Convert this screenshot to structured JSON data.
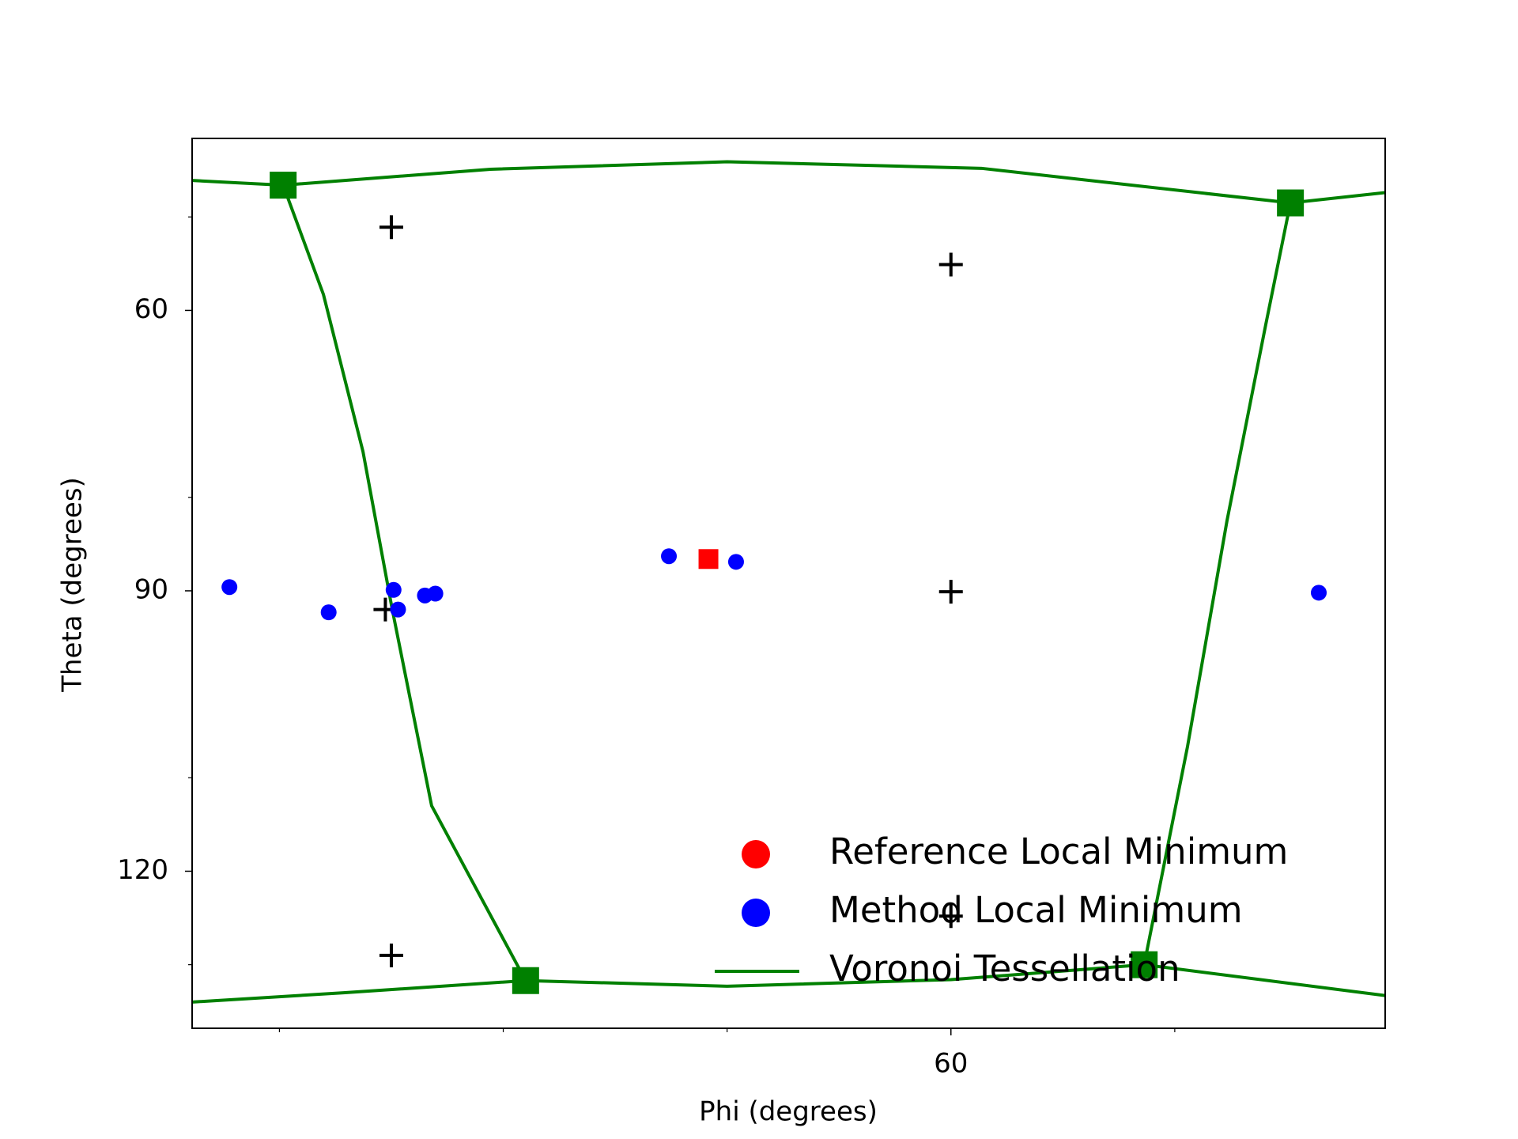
{
  "chart_data": {
    "type": "scatter",
    "xlabel": "Phi (degrees)",
    "ylabel": "Theta (degrees)",
    "xlim": [
      -41.7,
      118.2
    ],
    "ylim": [
      41.6,
      136.8
    ],
    "y_inverted": true,
    "xticks": [
      60
    ],
    "x_minor_ticks": [
      -30,
      0,
      30,
      90
    ],
    "yticks": [
      60,
      90,
      120
    ],
    "y_minor_ticks": [
      50,
      80,
      110,
      130
    ],
    "legend": "lower right",
    "series": [
      {
        "name": "Reference Local Minimum",
        "color": "#ff0000",
        "marker": "square",
        "x": [
          27.5
        ],
        "y": [
          86.6
        ]
      },
      {
        "name": "Method Local Minimum",
        "color": "#0000ff",
        "marker": "circle",
        "x": [
          -36.7,
          -23.4,
          -14.7,
          -14.1,
          -10.5,
          -9.1,
          22.2,
          31.2,
          109.3
        ],
        "y": [
          89.6,
          92.3,
          89.9,
          92.0,
          90.5,
          90.3,
          86.3,
          86.9,
          90.2
        ]
      },
      {
        "name": "Voronoi Tessellation",
        "color": "#008000",
        "marker": "line",
        "x": [
          -41.7,
          -29.5,
          -1.7,
          30.0,
          64.1,
          105.5,
          118.2,
          null,
          -29.5,
          -24.1,
          -18.8,
          -14.9,
          -9.6,
          3.0,
          null,
          105.5,
          102.2,
          97.0,
          91.7,
          85.9,
          null,
          -41.7,
          -21.4,
          3.0,
          30.0,
          60,
          85.9,
          118.2
        ],
        "y": [
          46.1,
          46.6,
          44.9,
          44.1,
          44.8,
          48.5,
          47.4,
          null,
          46.6,
          58.3,
          75.1,
          91.9,
          113.0,
          131.7,
          null,
          48.5,
          61.5,
          82.5,
          106.7,
          130.0,
          null,
          134.0,
          133.0,
          131.7,
          132.3,
          131.6,
          130.0,
          133.3
        ]
      }
    ],
    "vertices": {
      "color": "#008000",
      "x": [
        -29.5,
        105.5,
        3.0,
        85.9
      ],
      "y": [
        46.6,
        48.5,
        131.7,
        130.0
      ]
    },
    "seeds": {
      "color": "#000000",
      "x": [
        -15.0,
        60,
        60,
        -15.8,
        60,
        -15.0
      ],
      "y": [
        51.1,
        55.1,
        90.1,
        92.0,
        124.8,
        129.0
      ]
    }
  }
}
